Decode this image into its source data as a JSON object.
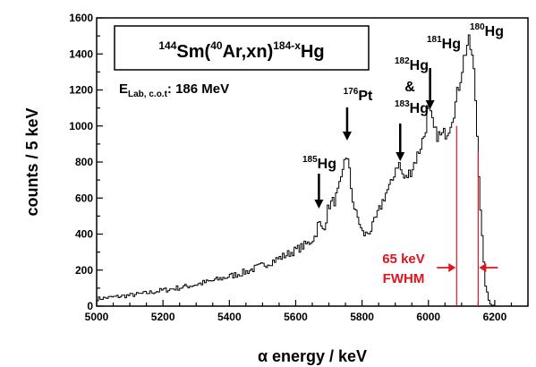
{
  "chart_data": {
    "type": "line",
    "title": "144Sm(40Ar,xn)184-xHg",
    "title_parts": {
      "m1": "144",
      "el1": "Sm(",
      "m2": "40",
      "el2": "Ar,xn)",
      "m3": "184-x",
      "el3": "Hg"
    },
    "energy_label": {
      "base": "E",
      "sub": "Lab, c.o.t",
      "value": ": 186 MeV"
    },
    "xlabel": "α energy / keV",
    "ylabel": "counts / 5 keV",
    "xlim": [
      5000,
      6300
    ],
    "ylim": [
      0,
      1600
    ],
    "xticks": [
      "5000",
      "5200",
      "5400",
      "5600",
      "5800",
      "6000",
      "6200"
    ],
    "yticks": [
      "0",
      "200",
      "400",
      "600",
      "800",
      "1000",
      "1200",
      "1400",
      "1600"
    ],
    "grid": false,
    "series": [
      {
        "color": "#000000",
        "bin_width": 5,
        "points": [
          [
            5000,
            40
          ],
          [
            5050,
            50
          ],
          [
            5100,
            60
          ],
          [
            5150,
            72
          ],
          [
            5200,
            88
          ],
          [
            5250,
            102
          ],
          [
            5300,
            120
          ],
          [
            5350,
            140
          ],
          [
            5400,
            165
          ],
          [
            5450,
            190
          ],
          [
            5500,
            225
          ],
          [
            5550,
            265
          ],
          [
            5600,
            310
          ],
          [
            5640,
            350
          ],
          [
            5660,
            390
          ],
          [
            5670,
            470
          ],
          [
            5680,
            420
          ],
          [
            5690,
            460
          ],
          [
            5700,
            560
          ],
          [
            5720,
            590
          ],
          [
            5740,
            700
          ],
          [
            5750,
            860
          ],
          [
            5760,
            780
          ],
          [
            5770,
            620
          ],
          [
            5780,
            520
          ],
          [
            5790,
            480
          ],
          [
            5800,
            410
          ],
          [
            5810,
            395
          ],
          [
            5830,
            430
          ],
          [
            5850,
            520
          ],
          [
            5870,
            620
          ],
          [
            5890,
            680
          ],
          [
            5900,
            760
          ],
          [
            5910,
            800
          ],
          [
            5920,
            740
          ],
          [
            5930,
            700
          ],
          [
            5950,
            760
          ],
          [
            5970,
            850
          ],
          [
            5990,
            960
          ],
          [
            6000,
            1110
          ],
          [
            6010,
            1030
          ],
          [
            6020,
            960
          ],
          [
            6040,
            940
          ],
          [
            6060,
            980
          ],
          [
            6080,
            1100
          ],
          [
            6100,
            1300
          ],
          [
            6110,
            1400
          ],
          [
            6120,
            1470
          ],
          [
            6130,
            1420
          ],
          [
            6140,
            1250
          ],
          [
            6150,
            850
          ],
          [
            6160,
            450
          ],
          [
            6170,
            150
          ],
          [
            6180,
            40
          ],
          [
            6190,
            10
          ],
          [
            6200,
            2
          ]
        ]
      }
    ],
    "annotations": [
      {
        "mass": "185",
        "el": "Hg",
        "x": 5670
      },
      {
        "mass": "176",
        "el": "Pt",
        "x": 5755
      },
      {
        "mass": "182",
        "el": "Hg",
        "amp": "&",
        "mass2": "183",
        "el2": "Hg",
        "x": 5915
      },
      {
        "mass": "181",
        "el": "Hg",
        "x": 6005
      },
      {
        "mass": "180",
        "el": "Hg",
        "x": 6120
      }
    ],
    "fwhm": {
      "line1": "65 keV",
      "line2": "FWHM",
      "left_x": 6085,
      "right_x": 6150,
      "color": "#e0141e"
    }
  }
}
